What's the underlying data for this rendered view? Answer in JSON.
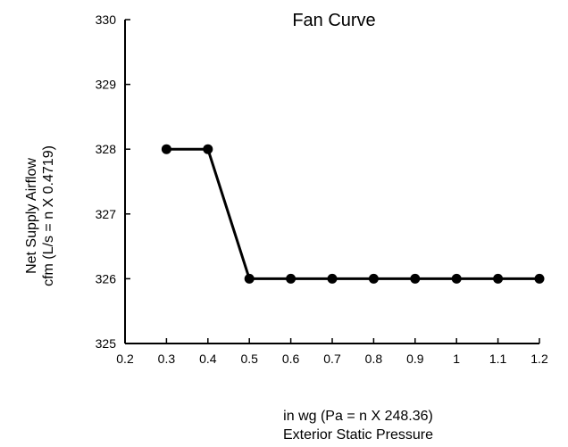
{
  "chart_data": {
    "type": "line",
    "title": "Fan Curve",
    "xlabel_line1": "in wg (Pa = n X 248.36)",
    "xlabel_line2": "Exterior Static Pressure",
    "ylabel_line1": "Net Supply Airflow",
    "ylabel_line2": "cfm (L/s = n X 0.4719)",
    "xlim": [
      0.2,
      1.2
    ],
    "ylim": [
      325,
      330
    ],
    "xticks": [
      "0.2",
      "0.3",
      "0.4",
      "0.5",
      "0.6",
      "0.7",
      "0.8",
      "0.9",
      "1",
      "1.1",
      "1.2"
    ],
    "yticks": [
      "325",
      "326",
      "327",
      "328",
      "329",
      "330"
    ],
    "grid": false,
    "series": [
      {
        "x": [
          0.3,
          0.4,
          0.5,
          0.6,
          0.7,
          0.8,
          0.9,
          1.0,
          1.1,
          1.2
        ],
        "y": [
          328,
          328,
          326,
          326,
          326,
          326,
          326,
          326,
          326,
          326
        ],
        "color": "#000000",
        "marker": "circle"
      }
    ]
  }
}
